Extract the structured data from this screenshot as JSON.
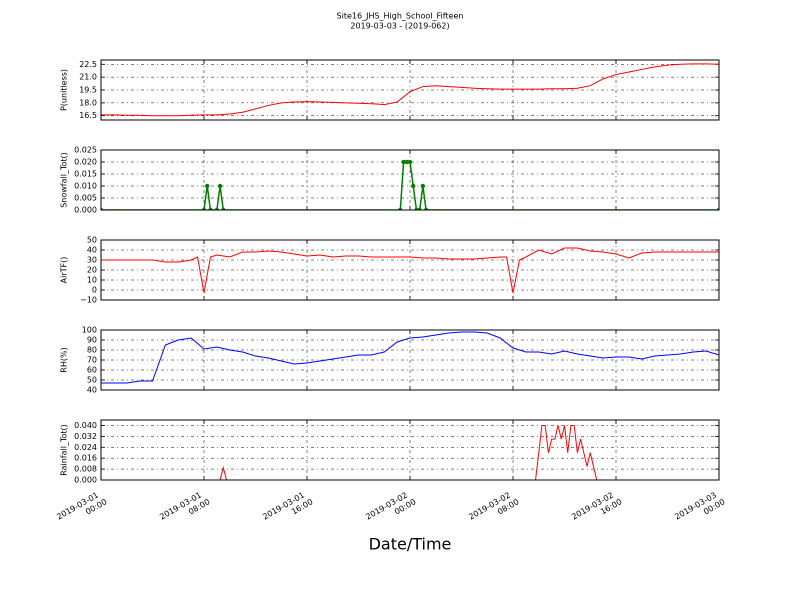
{
  "title": "Site16_JHS_High_School_Fifteen",
  "subtitle": "2019-03-03 - (2019-062)",
  "xaxis": {
    "label": "Date/Time",
    "xlim": [
      "2019-03-01 00:00",
      "2019-03-03 00:00"
    ],
    "xticks": [
      "2019-03-01 00:00",
      "2019-03-01 08:00",
      "2019-03-01 16:00",
      "2019-03-02 00:00",
      "2019-03-02 08:00",
      "2019-03-02 16:00",
      "2019-03-03 00:00"
    ]
  },
  "chart_data": [
    {
      "type": "line",
      "ylabel": "P(unitless)",
      "color": "#ff0000",
      "grid": true,
      "ylim": [
        16,
        23
      ],
      "yticks": [
        16.5,
        {
          "value": 18,
          "label": "18.0"
        },
        19.5,
        {
          "value": 21,
          "label": "21.0"
        },
        22.5
      ],
      "x": [
        "2019-03-01 00:00",
        "2019-03-01 01:00",
        "2019-03-01 02:00",
        "2019-03-01 03:00",
        "2019-03-01 04:00",
        "2019-03-01 05:00",
        "2019-03-01 06:00",
        "2019-03-01 07:00",
        "2019-03-01 08:00",
        "2019-03-01 09:00",
        "2019-03-01 10:00",
        "2019-03-01 11:00",
        "2019-03-01 12:00",
        "2019-03-01 13:00",
        "2019-03-01 14:00",
        "2019-03-01 15:00",
        "2019-03-01 16:00",
        "2019-03-01 17:00",
        "2019-03-01 18:00",
        "2019-03-01 19:00",
        "2019-03-01 20:00",
        "2019-03-01 21:00",
        "2019-03-01 22:00",
        "2019-03-01 23:00",
        "2019-03-02 00:00",
        "2019-03-02 01:00",
        "2019-03-02 02:00",
        "2019-03-02 03:00",
        "2019-03-02 04:00",
        "2019-03-02 05:00",
        "2019-03-02 06:00",
        "2019-03-02 07:00",
        "2019-03-02 08:00",
        "2019-03-02 09:00",
        "2019-03-02 10:00",
        "2019-03-02 11:00",
        "2019-03-02 12:00",
        "2019-03-02 13:00",
        "2019-03-02 14:00",
        "2019-03-02 15:00",
        "2019-03-02 16:00",
        "2019-03-02 17:00",
        "2019-03-02 18:00",
        "2019-03-02 19:00",
        "2019-03-02 20:00",
        "2019-03-02 21:00",
        "2019-03-02 22:00",
        "2019-03-02 23:00",
        "2019-03-03 00:00"
      ],
      "values": [
        16.6,
        16.6,
        16.55,
        16.55,
        16.5,
        16.5,
        16.5,
        16.55,
        16.6,
        16.6,
        16.7,
        16.9,
        17.3,
        17.7,
        18.0,
        18.1,
        18.15,
        18.1,
        18.05,
        18.0,
        17.95,
        17.9,
        17.8,
        18.1,
        19.3,
        19.9,
        20.0,
        19.9,
        19.8,
        19.7,
        19.65,
        19.6,
        19.6,
        19.6,
        19.6,
        19.65,
        19.65,
        19.7,
        20.0,
        20.8,
        21.3,
        21.6,
        21.9,
        22.2,
        22.4,
        22.5,
        22.55,
        22.55,
        22.5
      ]
    },
    {
      "type": "line",
      "ylabel": "Snowfall_Tot()",
      "color": "#007f00",
      "markers": true,
      "grid": true,
      "ylim": [
        0,
        0.025
      ],
      "yticks": [
        {
          "value": 0,
          "label": "0.000"
        },
        {
          "value": 0.005,
          "label": "0.005"
        },
        {
          "value": 0.01,
          "label": "0.010"
        },
        {
          "value": 0.015,
          "label": "0.015"
        },
        {
          "value": 0.02,
          "label": "0.020"
        },
        {
          "value": 0.025,
          "label": "0.025"
        }
      ],
      "x": [
        "2019-03-01 00:00",
        "2019-03-01 08:00",
        "2019-03-01 08:15",
        "2019-03-01 08:30",
        "2019-03-01 09:00",
        "2019-03-01 09:15",
        "2019-03-01 09:30",
        "2019-03-01 23:15",
        "2019-03-01 23:30",
        "2019-03-01 23:45",
        "2019-03-02 00:00",
        "2019-03-02 00:15",
        "2019-03-02 00:30",
        "2019-03-02 00:45",
        "2019-03-02 01:00",
        "2019-03-02 01:15",
        "2019-03-03 00:00"
      ],
      "values": [
        0,
        0,
        0.01,
        0,
        0,
        0.01,
        0,
        0,
        0.02,
        0.02,
        0.02,
        0.01,
        0,
        0,
        0.01,
        0,
        0
      ]
    },
    {
      "type": "line",
      "ylabel": "AirTF()",
      "color": "#ff0000",
      "grid": true,
      "ylim": [
        -10,
        50
      ],
      "yticks": [
        {
          "value": -10,
          "label": "−10"
        },
        0,
        10,
        20,
        30,
        40,
        50
      ],
      "x": [
        "2019-03-01 00:00",
        "2019-03-01 01:00",
        "2019-03-01 02:00",
        "2019-03-01 03:00",
        "2019-03-01 04:00",
        "2019-03-01 05:00",
        "2019-03-01 06:00",
        "2019-03-01 07:00",
        "2019-03-01 07:30",
        "2019-03-01 08:00",
        "2019-03-01 08:30",
        "2019-03-01 09:00",
        "2019-03-01 10:00",
        "2019-03-01 11:00",
        "2019-03-01 12:00",
        "2019-03-01 13:00",
        "2019-03-01 14:00",
        "2019-03-01 15:00",
        "2019-03-01 16:00",
        "2019-03-01 17:00",
        "2019-03-01 18:00",
        "2019-03-01 19:00",
        "2019-03-01 20:00",
        "2019-03-01 21:00",
        "2019-03-01 22:00",
        "2019-03-01 23:00",
        "2019-03-02 00:00",
        "2019-03-02 01:00",
        "2019-03-02 02:00",
        "2019-03-02 03:00",
        "2019-03-02 04:00",
        "2019-03-02 05:00",
        "2019-03-02 06:00",
        "2019-03-02 07:00",
        "2019-03-02 07:30",
        "2019-03-02 08:00",
        "2019-03-02 08:30",
        "2019-03-02 09:00",
        "2019-03-02 10:00",
        "2019-03-02 11:00",
        "2019-03-02 12:00",
        "2019-03-02 13:00",
        "2019-03-02 14:00",
        "2019-03-02 15:00",
        "2019-03-02 16:00",
        "2019-03-02 17:00",
        "2019-03-02 18:00",
        "2019-03-02 19:00",
        "2019-03-02 20:00",
        "2019-03-02 21:00",
        "2019-03-02 22:00",
        "2019-03-02 23:00",
        "2019-03-03 00:00"
      ],
      "values": [
        30,
        30,
        30,
        30,
        30,
        28,
        28,
        30,
        33,
        -3,
        33,
        35,
        33,
        38,
        38,
        39,
        38,
        36,
        34,
        35,
        33,
        34,
        34,
        33,
        33,
        33,
        33,
        32,
        32,
        31,
        31,
        31,
        32,
        33,
        33,
        -3,
        30,
        33,
        40,
        36,
        42,
        42,
        39,
        38,
        36,
        32,
        37,
        38,
        38,
        38,
        38,
        38,
        38
      ]
    },
    {
      "type": "line",
      "ylabel": "RH(%)",
      "color": "#0000ff",
      "grid": true,
      "ylim": [
        40,
        100
      ],
      "yticks": [
        40,
        50,
        60,
        70,
        80,
        90,
        100
      ],
      "x": [
        "2019-03-01 00:00",
        "2019-03-01 01:00",
        "2019-03-01 02:00",
        "2019-03-01 03:00",
        "2019-03-01 04:00",
        "2019-03-01 05:00",
        "2019-03-01 06:00",
        "2019-03-01 07:00",
        "2019-03-01 08:00",
        "2019-03-01 09:00",
        "2019-03-01 10:00",
        "2019-03-01 11:00",
        "2019-03-01 12:00",
        "2019-03-01 13:00",
        "2019-03-01 14:00",
        "2019-03-01 15:00",
        "2019-03-01 16:00",
        "2019-03-01 17:00",
        "2019-03-01 18:00",
        "2019-03-01 19:00",
        "2019-03-01 20:00",
        "2019-03-01 21:00",
        "2019-03-01 22:00",
        "2019-03-01 23:00",
        "2019-03-02 00:00",
        "2019-03-02 01:00",
        "2019-03-02 02:00",
        "2019-03-02 03:00",
        "2019-03-02 04:00",
        "2019-03-02 05:00",
        "2019-03-02 06:00",
        "2019-03-02 07:00",
        "2019-03-02 08:00",
        "2019-03-02 09:00",
        "2019-03-02 10:00",
        "2019-03-02 11:00",
        "2019-03-02 12:00",
        "2019-03-02 13:00",
        "2019-03-02 14:00",
        "2019-03-02 15:00",
        "2019-03-02 16:00",
        "2019-03-02 17:00",
        "2019-03-02 18:00",
        "2019-03-02 19:00",
        "2019-03-02 20:00",
        "2019-03-02 21:00",
        "2019-03-02 22:00",
        "2019-03-02 23:00",
        "2019-03-03 00:00"
      ],
      "values": [
        47,
        47,
        47,
        49,
        49,
        85,
        90,
        92,
        81,
        83,
        80,
        78,
        74,
        72,
        69,
        66,
        67,
        69,
        71,
        73,
        75,
        75,
        78,
        88,
        92,
        93,
        95,
        97,
        98,
        98,
        97,
        92,
        82,
        78,
        78,
        76,
        79,
        76,
        74,
        72,
        73,
        73,
        71,
        74,
        75,
        76,
        78,
        79,
        75
      ]
    },
    {
      "type": "line",
      "ylabel": "Rainfall_Tot()",
      "color": "#ff0000",
      "grid": true,
      "ylim": [
        0,
        0.044
      ],
      "yticks": [
        {
          "value": 0,
          "label": "0.000"
        },
        {
          "value": 0.008,
          "label": "0.008"
        },
        {
          "value": 0.016,
          "label": "0.016"
        },
        {
          "value": 0.024,
          "label": "0.024"
        },
        {
          "value": 0.032,
          "label": "0.032"
        },
        {
          "value": 0.04,
          "label": "0.040"
        }
      ],
      "x": [
        "2019-03-01 00:00",
        "2019-03-01 09:15",
        "2019-03-01 09:30",
        "2019-03-01 09:45",
        "2019-03-02 09:45",
        "2019-03-02 10:15",
        "2019-03-02 10:30",
        "2019-03-02 10:45",
        "2019-03-02 11:00",
        "2019-03-02 11:15",
        "2019-03-02 11:30",
        "2019-03-02 11:45",
        "2019-03-02 12:00",
        "2019-03-02 12:15",
        "2019-03-02 12:30",
        "2019-03-02 12:45",
        "2019-03-02 13:00",
        "2019-03-02 13:15",
        "2019-03-02 13:30",
        "2019-03-02 13:45",
        "2019-03-02 14:00",
        "2019-03-02 14:15",
        "2019-03-02 14:30",
        "2019-03-03 00:00"
      ],
      "values": [
        0,
        0,
        0.009,
        0,
        0,
        0.04,
        0.04,
        0.02,
        0.03,
        0.03,
        0.04,
        0.03,
        0.04,
        0.02,
        0.04,
        0.04,
        0.02,
        0.03,
        0.02,
        0.01,
        0.02,
        0.01,
        0,
        0
      ]
    }
  ]
}
